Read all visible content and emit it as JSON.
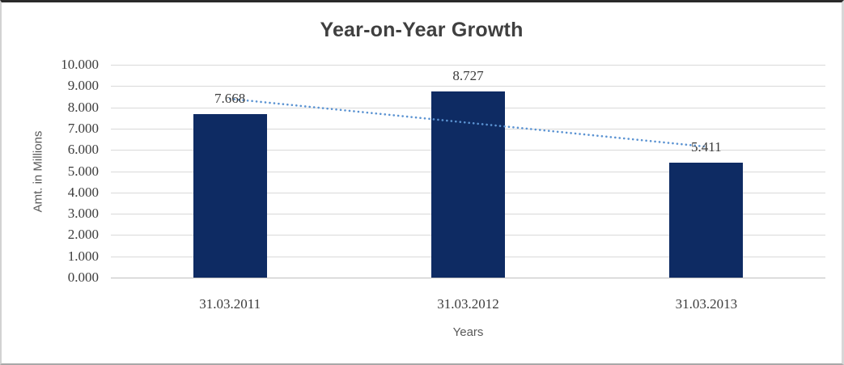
{
  "chart_data": {
    "type": "bar",
    "title": "Year-on-Year Growth",
    "xlabel": "Years",
    "ylabel": "Amt. in Millions",
    "categories": [
      "31.03.2011",
      "31.03.2012",
      "31.03.2013"
    ],
    "values": [
      7.668,
      8.727,
      5.411
    ],
    "data_labels": [
      "7.668",
      "8.727",
      "5.411"
    ],
    "ylim": [
      0,
      10
    ],
    "ytick_step": 1,
    "ytick_labels": [
      "0.000",
      "1.000",
      "2.000",
      "3.000",
      "4.000",
      "5.000",
      "6.000",
      "7.000",
      "8.000",
      "9.000",
      "10.000"
    ],
    "grid": true,
    "legend": "none",
    "trendline": {
      "kind": "linear-dotted",
      "start_value": 8.4,
      "end_value": 6.15,
      "color": "#5b93d2"
    },
    "colors": {
      "bar": "#0e2b63",
      "gridline": "#d9d9d9",
      "zero_axis_line": "#bfbfbf",
      "title_text": "#3f3f3f",
      "tick_text": "#3c3c3c",
      "axis_title_text": "#595959",
      "trendline": "#5b93d2",
      "background": "#ffffff"
    }
  }
}
